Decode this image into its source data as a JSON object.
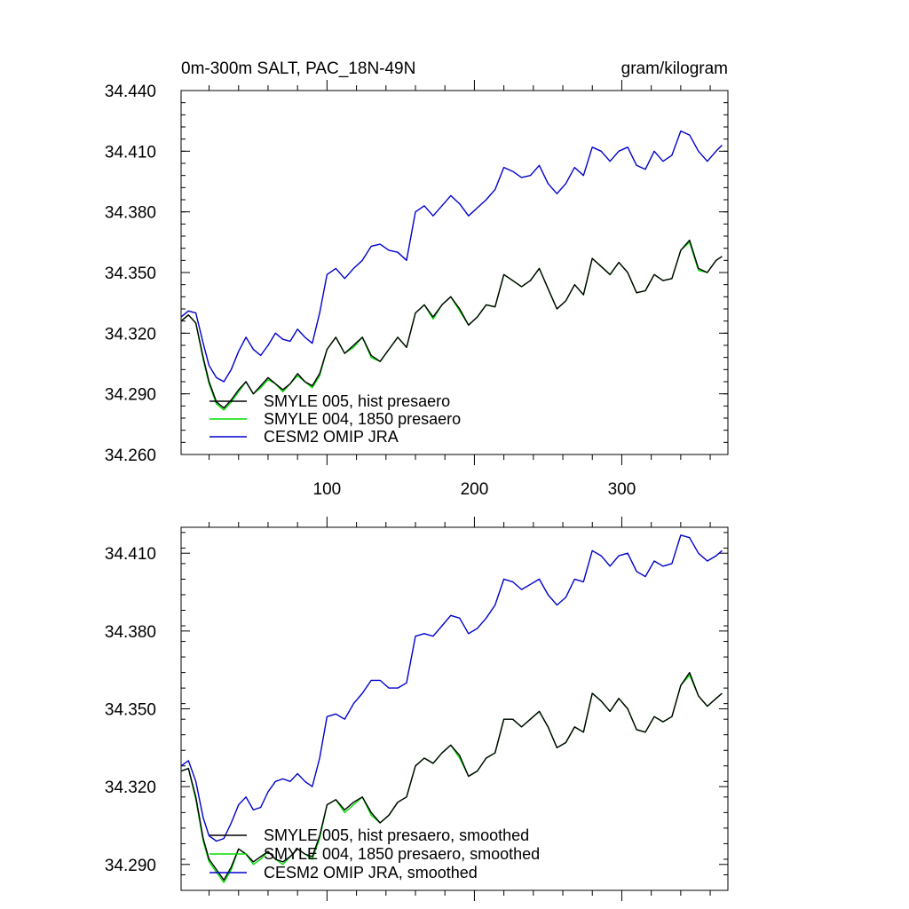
{
  "title_left": "0m-300m SALT, PAC_18N-49N",
  "title_right": "gram/kilogram",
  "colors": {
    "SMYLE_005": "#000000",
    "SMYLE_004": "#00dd00",
    "CESM2_OMIP": "#0000cc"
  },
  "chart_data": [
    {
      "type": "line",
      "title": "0m-300m SALT, PAC_18N-49N",
      "units": "gram/kilogram",
      "xlim": [
        1,
        372
      ],
      "ylim": [
        34.26,
        34.44
      ],
      "x_ticks": [
        100,
        200,
        300
      ],
      "x_tick_labels": [
        "100",
        "200",
        "300"
      ],
      "y_ticks": [
        34.26,
        34.29,
        34.32,
        34.35,
        34.38,
        34.41,
        34.44
      ],
      "y_tick_labels": [
        "34.260",
        "34.290",
        "34.320",
        "34.350",
        "34.380",
        "34.410",
        "34.440"
      ],
      "grid": false,
      "legend_position": "lower-left",
      "x": [
        1,
        6,
        11,
        16,
        20,
        25,
        30,
        35,
        40,
        45,
        50,
        55,
        60,
        65,
        70,
        75,
        80,
        85,
        90,
        95,
        100,
        106,
        112,
        118,
        124,
        130,
        136,
        142,
        148,
        154,
        160,
        166,
        172,
        178,
        184,
        190,
        196,
        202,
        208,
        214,
        220,
        226,
        232,
        238,
        244,
        250,
        256,
        262,
        268,
        274,
        280,
        286,
        292,
        298,
        304,
        310,
        316,
        322,
        328,
        334,
        340,
        346,
        352,
        358,
        364,
        368
      ],
      "series": [
        {
          "name": "SMYLE 005, hist presaero",
          "color": "#000000",
          "values": [
            34.326,
            34.329,
            34.325,
            34.308,
            34.296,
            34.286,
            34.283,
            34.287,
            34.292,
            34.296,
            34.29,
            34.294,
            34.298,
            34.295,
            34.292,
            34.295,
            34.3,
            34.296,
            34.294,
            34.3,
            34.312,
            34.318,
            34.31,
            34.314,
            34.318,
            34.309,
            34.306,
            34.312,
            34.318,
            34.313,
            34.33,
            34.334,
            34.328,
            34.334,
            34.338,
            34.332,
            34.324,
            34.328,
            34.334,
            34.333,
            34.349,
            34.346,
            34.343,
            34.346,
            34.352,
            34.342,
            34.332,
            34.336,
            34.344,
            34.339,
            34.357,
            34.353,
            34.349,
            34.355,
            34.35,
            34.34,
            34.341,
            34.349,
            34.346,
            34.347,
            34.361,
            34.366,
            34.352,
            34.35,
            34.356,
            34.358
          ]
        },
        {
          "name": "SMYLE 004, 1850 presaero",
          "color": "#00dd00",
          "values": [
            34.326,
            34.329,
            34.325,
            34.307,
            34.295,
            34.285,
            34.282,
            34.286,
            34.291,
            34.296,
            34.29,
            34.293,
            34.297,
            34.295,
            34.291,
            34.295,
            34.299,
            34.296,
            34.293,
            34.299,
            34.312,
            34.318,
            34.31,
            34.313,
            34.318,
            34.308,
            34.306,
            34.312,
            34.318,
            34.313,
            34.33,
            34.334,
            34.327,
            34.334,
            34.338,
            34.331,
            34.324,
            34.328,
            34.334,
            34.333,
            34.349,
            34.346,
            34.343,
            34.346,
            34.352,
            34.342,
            34.332,
            34.336,
            34.344,
            34.339,
            34.357,
            34.353,
            34.349,
            34.355,
            34.35,
            34.34,
            34.341,
            34.349,
            34.346,
            34.347,
            34.361,
            34.365,
            34.351,
            34.35,
            34.356,
            34.358
          ]
        },
        {
          "name": "CESM2 OMIP JRA",
          "color": "#0000cc",
          "values": [
            34.328,
            34.331,
            34.33,
            34.315,
            34.304,
            34.298,
            34.296,
            34.302,
            34.311,
            34.318,
            34.312,
            34.309,
            34.314,
            34.32,
            34.317,
            34.316,
            34.322,
            34.318,
            34.315,
            34.33,
            34.349,
            34.352,
            34.347,
            34.352,
            34.356,
            34.363,
            34.364,
            34.361,
            34.36,
            34.356,
            34.38,
            34.383,
            34.378,
            34.383,
            34.388,
            34.384,
            34.378,
            34.382,
            34.386,
            34.391,
            34.402,
            34.4,
            34.397,
            34.398,
            34.403,
            34.394,
            34.389,
            34.394,
            34.402,
            34.398,
            34.412,
            34.41,
            34.405,
            34.41,
            34.412,
            34.403,
            34.401,
            34.41,
            34.405,
            34.408,
            34.42,
            34.418,
            34.41,
            34.405,
            34.41,
            34.413
          ]
        }
      ]
    },
    {
      "type": "line",
      "title": "",
      "xlim": [
        1,
        372
      ],
      "ylim": [
        34.28,
        34.42
      ],
      "x_ticks": [
        100,
        200,
        300
      ],
      "x_tick_labels": [],
      "y_ticks": [
        34.29,
        34.32,
        34.35,
        34.38,
        34.41
      ],
      "y_tick_labels": [
        "34.290",
        "34.320",
        "34.350",
        "34.380",
        "34.410"
      ],
      "grid": false,
      "legend_position": "lower-left",
      "x": [
        1,
        6,
        11,
        16,
        20,
        25,
        30,
        35,
        40,
        45,
        50,
        55,
        60,
        65,
        70,
        75,
        80,
        85,
        90,
        95,
        100,
        106,
        112,
        118,
        124,
        130,
        136,
        142,
        148,
        154,
        160,
        166,
        172,
        178,
        184,
        190,
        196,
        202,
        208,
        214,
        220,
        226,
        232,
        238,
        244,
        250,
        256,
        262,
        268,
        274,
        280,
        286,
        292,
        298,
        304,
        310,
        316,
        322,
        328,
        334,
        340,
        346,
        352,
        358,
        364,
        368
      ],
      "series": [
        {
          "name": "SMYLE 005, hist presaero, smoothed",
          "color": "#000000",
          "values": [
            34.326,
            34.327,
            34.316,
            34.3,
            34.292,
            34.288,
            34.284,
            34.289,
            34.296,
            34.294,
            34.291,
            34.293,
            34.295,
            34.292,
            34.291,
            34.293,
            34.296,
            34.294,
            34.293,
            34.301,
            34.313,
            34.315,
            34.311,
            34.314,
            34.316,
            34.31,
            34.306,
            34.309,
            34.314,
            34.316,
            34.328,
            34.331,
            34.329,
            34.333,
            34.336,
            34.332,
            34.324,
            34.326,
            34.331,
            34.333,
            34.346,
            34.346,
            34.343,
            34.346,
            34.349,
            34.343,
            34.335,
            34.337,
            34.343,
            34.341,
            34.356,
            34.353,
            34.349,
            34.354,
            34.35,
            34.342,
            34.341,
            34.347,
            34.345,
            34.347,
            34.359,
            34.364,
            34.355,
            34.351,
            34.354,
            34.356
          ]
        },
        {
          "name": "SMYLE 004, 1850 presaero, smoothed",
          "color": "#00dd00",
          "values": [
            34.326,
            34.327,
            34.315,
            34.299,
            34.291,
            34.287,
            34.283,
            34.288,
            34.296,
            34.294,
            34.29,
            34.292,
            34.295,
            34.292,
            34.29,
            34.293,
            34.296,
            34.294,
            34.292,
            34.3,
            34.313,
            34.315,
            34.31,
            34.313,
            34.316,
            34.309,
            34.306,
            34.309,
            34.314,
            34.316,
            34.328,
            34.331,
            34.329,
            34.333,
            34.336,
            34.331,
            34.324,
            34.326,
            34.331,
            34.333,
            34.346,
            34.346,
            34.343,
            34.346,
            34.349,
            34.343,
            34.335,
            34.337,
            34.343,
            34.341,
            34.356,
            34.353,
            34.349,
            34.354,
            34.35,
            34.342,
            34.341,
            34.347,
            34.345,
            34.347,
            34.359,
            34.363,
            34.355,
            34.351,
            34.354,
            34.356
          ]
        },
        {
          "name": "CESM2 OMIP JRA, smoothed",
          "color": "#0000cc",
          "values": [
            34.328,
            34.33,
            34.322,
            34.308,
            34.301,
            34.299,
            34.3,
            34.306,
            34.313,
            34.316,
            34.311,
            34.312,
            34.318,
            34.322,
            34.323,
            34.322,
            34.325,
            34.322,
            34.32,
            34.331,
            34.347,
            34.348,
            34.346,
            34.352,
            34.356,
            34.361,
            34.361,
            34.358,
            34.358,
            34.36,
            34.378,
            34.379,
            34.378,
            34.382,
            34.386,
            34.385,
            34.379,
            34.381,
            34.385,
            34.39,
            34.4,
            34.399,
            34.396,
            34.398,
            34.4,
            34.394,
            34.39,
            34.393,
            34.4,
            34.399,
            34.411,
            34.409,
            34.405,
            34.409,
            34.41,
            34.403,
            34.401,
            34.407,
            34.405,
            34.406,
            34.417,
            34.416,
            34.41,
            34.407,
            34.409,
            34.411
          ]
        }
      ]
    }
  ]
}
